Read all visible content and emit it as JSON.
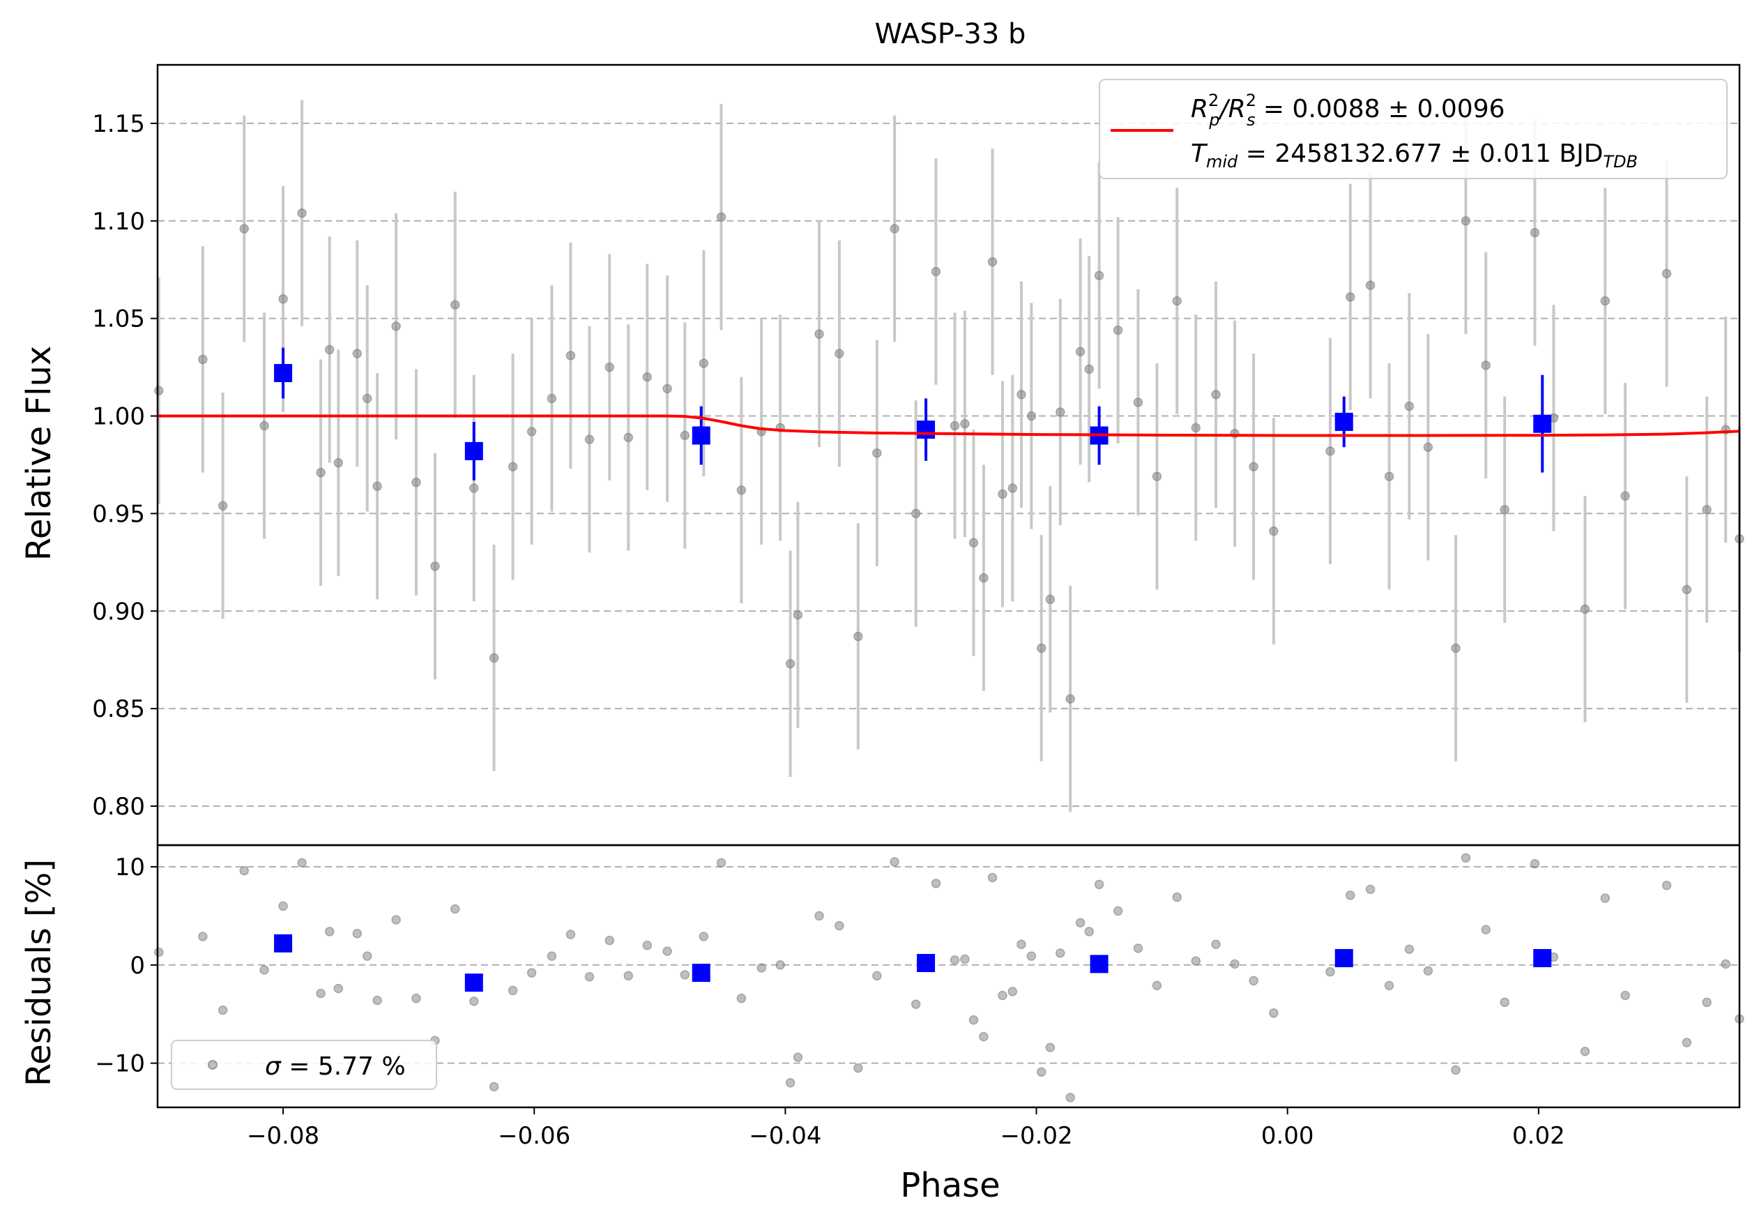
{
  "chart_data": [
    {
      "type": "scatter",
      "title": "WASP-33 b",
      "ylabel": "Relative Flux",
      "xlim": [
        -0.09,
        0.036
      ],
      "ylim": [
        0.78,
        1.18
      ],
      "yticks": [
        0.8,
        0.85,
        0.9,
        0.95,
        1.0,
        1.05,
        1.1,
        1.15
      ],
      "ytick_labels": [
        "0.80",
        "0.85",
        "0.90",
        "0.95",
        "1.00",
        "1.05",
        "1.10",
        "1.15"
      ],
      "grid": "horizontal dashed",
      "legend_position": "top-right",
      "legend": {
        "line1_a": "R",
        "line1_b": "/R",
        "line1_c": " = 0.0088 ± 0.0096",
        "sup": "2",
        "sub_p": "p",
        "sub_s": "s",
        "line2_a": "T",
        "line2_sub": "mid",
        "line2_b": " = 2458132.677 ± 0.011 BJD",
        "line2_sub2": "TDB"
      },
      "colors": {
        "raw": "#808080",
        "errorbar": "#c8c8c8",
        "binned": "#0000ff",
        "model": "#ff0000",
        "grid": "#b0b0b0"
      },
      "raw_points": [
        [
          -0.0899,
          1.013,
          0.058
        ],
        [
          -0.0864,
          1.029,
          0.058
        ],
        [
          -0.0848,
          0.954,
          0.058
        ],
        [
          -0.0831,
          1.096,
          0.058
        ],
        [
          -0.0815,
          0.995,
          0.058
        ],
        [
          -0.08,
          1.06,
          0.058
        ],
        [
          -0.0785,
          1.104,
          0.058
        ],
        [
          -0.077,
          0.971,
          0.058
        ],
        [
          -0.0763,
          1.034,
          0.058
        ],
        [
          -0.0756,
          0.976,
          0.058
        ],
        [
          -0.0741,
          1.032,
          0.058
        ],
        [
          -0.0733,
          1.009,
          0.058
        ],
        [
          -0.0725,
          0.964,
          0.058
        ],
        [
          -0.071,
          1.046,
          0.058
        ],
        [
          -0.0694,
          0.966,
          0.058
        ],
        [
          -0.0679,
          0.923,
          0.058
        ],
        [
          -0.0663,
          1.057,
          0.058
        ],
        [
          -0.0648,
          0.963,
          0.058
        ],
        [
          -0.0632,
          0.876,
          0.058
        ],
        [
          -0.0617,
          0.974,
          0.058
        ],
        [
          -0.0602,
          0.992,
          0.058
        ],
        [
          -0.0586,
          1.009,
          0.058
        ],
        [
          -0.0571,
          1.031,
          0.058
        ],
        [
          -0.0556,
          0.988,
          0.058
        ],
        [
          -0.054,
          1.025,
          0.058
        ],
        [
          -0.0525,
          0.989,
          0.058
        ],
        [
          -0.051,
          1.02,
          0.058
        ],
        [
          -0.0494,
          1.014,
          0.058
        ],
        [
          -0.048,
          0.99,
          0.058
        ],
        [
          -0.0465,
          1.027,
          0.058
        ],
        [
          -0.0451,
          1.102,
          0.058
        ],
        [
          -0.0435,
          0.962,
          0.058
        ],
        [
          -0.0419,
          0.992,
          0.058
        ],
        [
          -0.0404,
          0.994,
          0.058
        ],
        [
          -0.0396,
          0.873,
          0.058
        ],
        [
          -0.039,
          0.898,
          0.058
        ],
        [
          -0.0373,
          1.042,
          0.058
        ],
        [
          -0.0357,
          1.032,
          0.058
        ],
        [
          -0.0342,
          0.887,
          0.058
        ],
        [
          -0.0327,
          0.981,
          0.058
        ],
        [
          -0.0313,
          1.096,
          0.058
        ],
        [
          -0.0296,
          0.95,
          0.058
        ],
        [
          -0.028,
          1.074,
          0.058
        ],
        [
          -0.0265,
          0.995,
          0.058
        ],
        [
          -0.0257,
          0.996,
          0.058
        ],
        [
          -0.025,
          0.935,
          0.058
        ],
        [
          -0.0242,
          0.917,
          0.058
        ],
        [
          -0.0235,
          1.079,
          0.058
        ],
        [
          -0.0227,
          0.96,
          0.058
        ],
        [
          -0.0219,
          0.963,
          0.058
        ],
        [
          -0.0212,
          1.011,
          0.058
        ],
        [
          -0.0204,
          1.0,
          0.058
        ],
        [
          -0.0196,
          0.881,
          0.058
        ],
        [
          -0.0189,
          0.906,
          0.058
        ],
        [
          -0.0181,
          1.002,
          0.058
        ],
        [
          -0.0173,
          0.855,
          0.058
        ],
        [
          -0.0165,
          1.033,
          0.058
        ],
        [
          -0.0158,
          1.024,
          0.058
        ],
        [
          -0.015,
          1.072,
          0.058
        ],
        [
          -0.0135,
          1.044,
          0.058
        ],
        [
          -0.0119,
          1.007,
          0.058
        ],
        [
          -0.0104,
          0.969,
          0.058
        ],
        [
          -0.0088,
          1.059,
          0.058
        ],
        [
          -0.0073,
          0.994,
          0.058
        ],
        [
          -0.0057,
          1.011,
          0.058
        ],
        [
          -0.0042,
          0.991,
          0.058
        ],
        [
          -0.0027,
          0.974,
          0.058
        ],
        [
          -0.0011,
          0.941,
          0.058
        ],
        [
          0.0034,
          0.982,
          0.058
        ],
        [
          0.005,
          1.061,
          0.058
        ],
        [
          0.0066,
          1.067,
          0.058
        ],
        [
          0.0081,
          0.969,
          0.058
        ],
        [
          0.0097,
          1.005,
          0.058
        ],
        [
          0.0112,
          0.984,
          0.058
        ],
        [
          0.0134,
          0.881,
          0.058
        ],
        [
          0.0142,
          1.1,
          0.058
        ],
        [
          0.0158,
          1.026,
          0.058
        ],
        [
          0.0173,
          0.952,
          0.058
        ],
        [
          0.0197,
          1.094,
          0.058
        ],
        [
          0.0212,
          0.999,
          0.058
        ],
        [
          0.0237,
          0.901,
          0.058
        ],
        [
          0.0253,
          1.059,
          0.058
        ],
        [
          0.0269,
          0.959,
          0.058
        ],
        [
          0.0302,
          1.073,
          0.058
        ],
        [
          0.0318,
          0.911,
          0.058
        ],
        [
          0.0334,
          0.952,
          0.058
        ],
        [
          0.0349,
          0.993,
          0.058
        ],
        [
          0.036,
          0.937,
          0.058
        ]
      ],
      "binned_points": [
        [
          -0.08,
          1.022,
          0.013
        ],
        [
          -0.0648,
          0.982,
          0.015
        ],
        [
          -0.0467,
          0.99,
          0.015
        ],
        [
          -0.0288,
          0.993,
          0.016
        ],
        [
          -0.015,
          0.99,
          0.015
        ],
        [
          0.0045,
          0.997,
          0.013
        ],
        [
          0.0203,
          0.996,
          0.025
        ]
      ],
      "model": {
        "name": "transit model",
        "x": [
          -0.09,
          -0.0495,
          -0.048,
          -0.0465,
          -0.045,
          -0.0435,
          -0.042,
          -0.04,
          -0.037,
          -0.033,
          -0.028,
          -0.02,
          -0.01,
          0.0,
          0.01,
          0.02,
          0.025,
          0.03,
          0.033,
          0.036
        ],
        "y": [
          1.0,
          1.0,
          0.9998,
          0.9988,
          0.997,
          0.995,
          0.9935,
          0.9925,
          0.9918,
          0.9913,
          0.991,
          0.9905,
          0.9902,
          0.99,
          0.99,
          0.9901,
          0.9903,
          0.9907,
          0.9913,
          0.9922
        ]
      }
    },
    {
      "type": "scatter",
      "xlabel": "Phase",
      "ylabel": "Residuals [%]",
      "xlim": [
        -0.09,
        0.036
      ],
      "ylim": [
        -14.5,
        12.2
      ],
      "xticks": [
        -0.08,
        -0.06,
        -0.04,
        -0.02,
        0.0,
        0.02
      ],
      "xtick_labels": [
        "−0.08",
        "−0.06",
        "−0.04",
        "−0.02",
        "0.00",
        "0.02"
      ],
      "yticks": [
        -10,
        0,
        10
      ],
      "ytick_labels": [
        "−10",
        "0",
        "10"
      ],
      "grid": "horizontal dashed",
      "legend_position": "bottom-left",
      "legend": {
        "sigma_symbol": "σ",
        "sigma_text": " = 5.77 %"
      },
      "raw_points": [
        [
          -0.0899,
          1.3
        ],
        [
          -0.0864,
          2.9
        ],
        [
          -0.0848,
          -4.6
        ],
        [
          -0.0831,
          9.6
        ],
        [
          -0.0815,
          -0.5
        ],
        [
          -0.08,
          6.0
        ],
        [
          -0.0785,
          10.4
        ],
        [
          -0.077,
          -2.9
        ],
        [
          -0.0763,
          3.4
        ],
        [
          -0.0756,
          -2.4
        ],
        [
          -0.0741,
          3.2
        ],
        [
          -0.0733,
          0.9
        ],
        [
          -0.0725,
          -3.6
        ],
        [
          -0.071,
          4.6
        ],
        [
          -0.0694,
          -3.4
        ],
        [
          -0.0679,
          -7.7
        ],
        [
          -0.0663,
          5.7
        ],
        [
          -0.0648,
          -3.7
        ],
        [
          -0.0632,
          -12.4
        ],
        [
          -0.0617,
          -2.6
        ],
        [
          -0.0602,
          -0.8
        ],
        [
          -0.0586,
          0.9
        ],
        [
          -0.0571,
          3.1
        ],
        [
          -0.0556,
          -1.2
        ],
        [
          -0.054,
          2.5
        ],
        [
          -0.0525,
          -1.1
        ],
        [
          -0.051,
          2.0
        ],
        [
          -0.0494,
          1.4
        ],
        [
          -0.048,
          -1.0
        ],
        [
          -0.0465,
          2.9
        ],
        [
          -0.0451,
          10.4
        ],
        [
          -0.0435,
          -3.4
        ],
        [
          -0.0419,
          -0.3
        ],
        [
          -0.0404,
          0.0
        ],
        [
          -0.0396,
          -12.0
        ],
        [
          -0.039,
          -9.4
        ],
        [
          -0.0373,
          5.0
        ],
        [
          -0.0357,
          4.0
        ],
        [
          -0.0342,
          -10.5
        ],
        [
          -0.0327,
          -1.1
        ],
        [
          -0.0313,
          10.5
        ],
        [
          -0.0296,
          -4.0
        ],
        [
          -0.028,
          8.3
        ],
        [
          -0.0265,
          0.5
        ],
        [
          -0.0257,
          0.6
        ],
        [
          -0.025,
          -5.6
        ],
        [
          -0.0242,
          -7.3
        ],
        [
          -0.0235,
          8.9
        ],
        [
          -0.0227,
          -3.1
        ],
        [
          -0.0219,
          -2.7
        ],
        [
          -0.0212,
          2.1
        ],
        [
          -0.0204,
          0.9
        ],
        [
          -0.0196,
          -10.9
        ],
        [
          -0.0189,
          -8.4
        ],
        [
          -0.0181,
          1.2
        ],
        [
          -0.0173,
          -13.5
        ],
        [
          -0.0165,
          4.3
        ],
        [
          -0.0158,
          3.4
        ],
        [
          -0.015,
          8.2
        ],
        [
          -0.0135,
          5.5
        ],
        [
          -0.0119,
          1.7
        ],
        [
          -0.0104,
          -2.1
        ],
        [
          -0.0088,
          6.9
        ],
        [
          -0.0073,
          0.4
        ],
        [
          -0.0057,
          2.1
        ],
        [
          -0.0042,
          0.1
        ],
        [
          -0.0027,
          -1.6
        ],
        [
          -0.0011,
          -4.9
        ],
        [
          0.0034,
          -0.7
        ],
        [
          0.005,
          7.1
        ],
        [
          0.0066,
          7.7
        ],
        [
          0.0081,
          -2.1
        ],
        [
          0.0097,
          1.6
        ],
        [
          0.0112,
          -0.6
        ],
        [
          0.0134,
          -10.7
        ],
        [
          0.0142,
          10.9
        ],
        [
          0.0158,
          3.6
        ],
        [
          0.0173,
          -3.8
        ],
        [
          0.0197,
          10.3
        ],
        [
          0.0212,
          0.8
        ],
        [
          0.0237,
          -8.8
        ],
        [
          0.0253,
          6.8
        ],
        [
          0.0269,
          -3.1
        ],
        [
          0.0302,
          8.1
        ],
        [
          0.0318,
          -7.9
        ],
        [
          0.0334,
          -3.8
        ],
        [
          0.0349,
          0.1
        ],
        [
          0.036,
          -5.5
        ]
      ],
      "binned_points": [
        [
          -0.08,
          2.2
        ],
        [
          -0.0648,
          -1.8
        ],
        [
          -0.0467,
          -0.8
        ],
        [
          -0.0288,
          0.2
        ],
        [
          -0.015,
          0.1
        ],
        [
          0.0045,
          0.7
        ],
        [
          0.0203,
          0.7
        ]
      ]
    }
  ]
}
